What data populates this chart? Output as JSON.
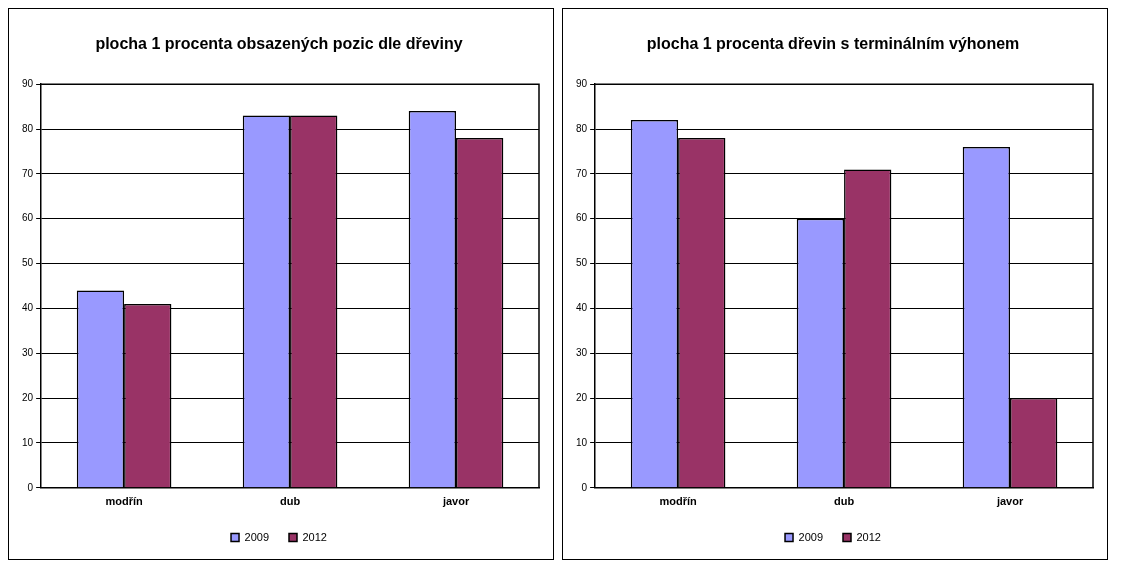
{
  "chart_data": [
    {
      "type": "bar",
      "title": "plocha 1 procenta obsazených pozic dle dřeviny",
      "categories": [
        "modřín",
        "dub",
        "javor"
      ],
      "series": [
        {
          "name": "2009",
          "color": "#9999ff",
          "values": [
            44,
            83,
            84
          ]
        },
        {
          "name": "2012",
          "color": "#993366",
          "values": [
            41,
            83,
            78
          ]
        }
      ],
      "ylim": [
        0,
        90
      ],
      "yticks": [
        0,
        10,
        20,
        30,
        40,
        50,
        60,
        70,
        80,
        90
      ],
      "grid": "y",
      "legend": "bottom"
    },
    {
      "type": "bar",
      "title": "plocha 1 procenta dřevin s terminálním výhonem",
      "categories": [
        "modřín",
        "dub",
        "javor"
      ],
      "series": [
        {
          "name": "2009",
          "color": "#9999ff",
          "values": [
            82,
            60,
            76
          ]
        },
        {
          "name": "2012",
          "color": "#993366",
          "values": [
            78,
            71,
            20
          ]
        }
      ],
      "ylim": [
        0,
        90
      ],
      "yticks": [
        0,
        10,
        20,
        30,
        40,
        50,
        60,
        70,
        80,
        90
      ],
      "grid": "y",
      "legend": "bottom"
    }
  ]
}
